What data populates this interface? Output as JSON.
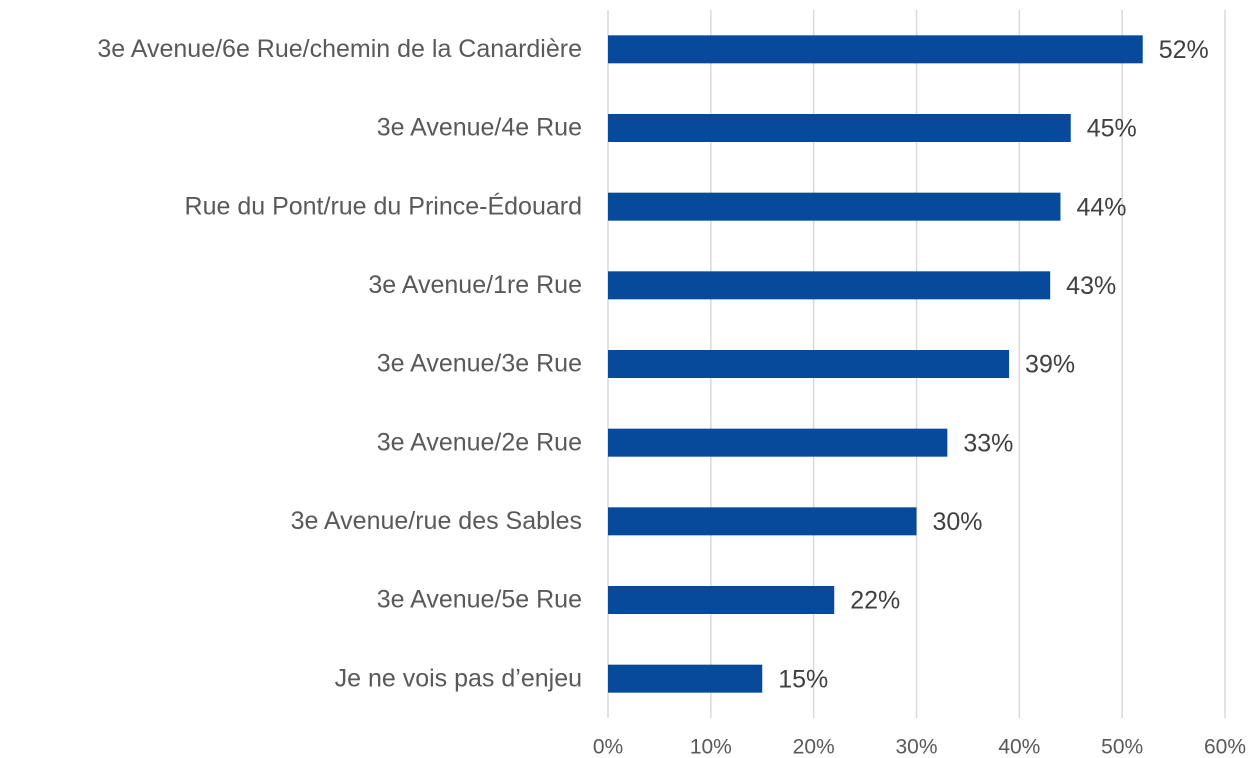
{
  "chart_data": {
    "type": "barh",
    "categories": [
      "3e Avenue/6e Rue/chemin de la Canardière",
      "3e Avenue/4e Rue",
      "Rue du Pont/rue du Prince-Édouard",
      "3e Avenue/1re Rue",
      "3e Avenue/3e Rue",
      "3e Avenue/2e Rue",
      "3e Avenue/rue des Sables",
      "3e Avenue/5e Rue",
      "Je ne vois pas d’enjeu"
    ],
    "values": [
      52,
      45,
      44,
      43,
      39,
      33,
      30,
      22,
      15
    ],
    "value_labels": [
      "52%",
      "45%",
      "44%",
      "43%",
      "39%",
      "33%",
      "30%",
      "22%",
      "15%"
    ],
    "color": "#074a9c",
    "xlim": [
      0,
      60
    ],
    "xticks": [
      {
        "value": 0,
        "label": "0%"
      },
      {
        "value": 10,
        "label": "10%"
      },
      {
        "value": 20,
        "label": "20%"
      },
      {
        "value": 30,
        "label": "30%"
      },
      {
        "value": 40,
        "label": "40%"
      },
      {
        "value": 50,
        "label": "50%"
      },
      {
        "value": 60,
        "label": "60%"
      }
    ],
    "grid": true
  }
}
